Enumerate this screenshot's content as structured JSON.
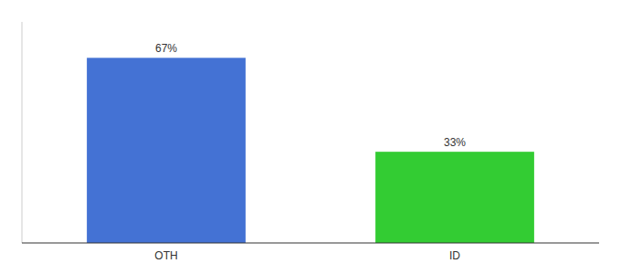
{
  "chart_data": {
    "type": "bar",
    "categories": [
      "OTH",
      "ID"
    ],
    "values": [
      67,
      33
    ],
    "value_labels": [
      "67%",
      "33%"
    ],
    "colors": [
      "#4472d4",
      "#33cc33"
    ],
    "ylim": [
      0,
      80
    ],
    "data_labels": true,
    "tick_labels": "x",
    "grid": false
  }
}
